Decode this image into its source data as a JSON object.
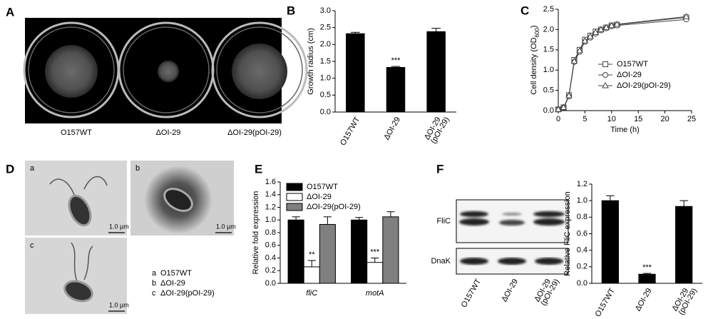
{
  "panel_labels": [
    "A",
    "B",
    "C",
    "D",
    "E",
    "F"
  ],
  "plates": {
    "labels": [
      "O157WT",
      "ΔOI-29",
      "ΔOI-29(pOI-29)"
    ]
  },
  "micrographs": {
    "sublabels": [
      "a",
      "b",
      "c"
    ],
    "scale_bars": [
      "1.0 µm",
      "1.0 µm",
      "1.0 µm"
    ],
    "legend": [
      [
        "a",
        "O157WT"
      ],
      [
        "b",
        "ΔOI-29"
      ],
      [
        "c",
        "ΔOI-29(pOI-29)"
      ]
    ]
  },
  "blot": {
    "bands": [
      "FliC",
      "DnaK"
    ],
    "lanes": [
      "O157WT",
      "ΔOI-29",
      [
        "ΔOI-29",
        "(pOI-29)"
      ]
    ]
  },
  "chart_data": [
    {
      "type": "bar",
      "ylabel": "Growth radius (cm)",
      "categories": [
        "O157WT",
        "ΔOI-29",
        [
          "ΔOI-29",
          "(pOI-29)"
        ]
      ],
      "values": [
        2.32,
        1.32,
        2.38
      ],
      "errors": [
        0.04,
        0.03,
        0.1
      ],
      "significance": [
        null,
        "***",
        null
      ],
      "color": "#000000",
      "ylim": [
        0,
        3
      ],
      "yticks": [
        {
          "value": 0,
          "label": "0.0"
        },
        0.5,
        {
          "value": 1,
          "label": "1.0"
        },
        1.5,
        {
          "value": 2,
          "label": "2.0"
        },
        2.5,
        {
          "value": 3,
          "label": "3.0"
        }
      ]
    },
    {
      "type": "line",
      "ylabel": [
        "Cell density (OD",
        "600",
        ")"
      ],
      "xlabel": "Time (h)",
      "x": [
        0,
        1,
        2,
        3,
        4,
        5,
        6,
        7,
        8,
        9,
        10,
        11,
        24
      ],
      "series": [
        {
          "name": "O157WT",
          "marker": "square",
          "color": "#444444",
          "values": [
            0.03,
            0.08,
            0.38,
            1.25,
            1.5,
            1.75,
            1.85,
            1.95,
            2.0,
            2.05,
            2.1,
            2.12,
            2.3
          ]
        },
        {
          "name": "ΔOI-29",
          "marker": "circle",
          "color": "#444444",
          "values": [
            0.03,
            0.07,
            0.35,
            1.2,
            1.45,
            1.7,
            1.8,
            1.9,
            1.98,
            2.03,
            2.08,
            2.1,
            2.25
          ]
        },
        {
          "name": "ΔOI-29(pOI-29)",
          "marker": "triangle",
          "color": "#444444",
          "values": [
            0.03,
            0.08,
            0.37,
            1.22,
            1.48,
            1.72,
            1.83,
            1.93,
            2.0,
            2.05,
            2.1,
            2.13,
            2.32
          ]
        }
      ],
      "xlim": [
        0,
        25
      ],
      "xticks": [
        0,
        5,
        10,
        15,
        20,
        25
      ],
      "ylim": [
        0,
        2.5
      ],
      "yticks": [
        {
          "value": 0,
          "label": "0.0"
        },
        0.5,
        {
          "value": 1,
          "label": "1.0"
        },
        1.5,
        {
          "value": 2,
          "label": "2.0"
        },
        2.5
      ]
    },
    {
      "type": "bar",
      "ylabel": "Relative fold expression",
      "categories": [
        "fliC",
        "motA"
      ],
      "series": [
        {
          "name": "O157WT",
          "color": "#000000",
          "values": [
            1.0,
            1.0
          ],
          "errors": [
            0.05,
            0.04
          ]
        },
        {
          "name": "ΔOI-29",
          "color": "#ffffff",
          "values": [
            0.26,
            0.33
          ],
          "errors": [
            0.1,
            0.07
          ],
          "significance": [
            "**",
            "***"
          ]
        },
        {
          "name": "ΔOI-29(pOI-29)",
          "color": "#808080",
          "values": [
            0.93,
            1.05
          ],
          "errors": [
            0.12,
            0.08
          ]
        }
      ],
      "ylim": [
        0,
        1.6
      ],
      "yticks": [
        {
          "value": 0,
          "label": "0.0"
        },
        0.2,
        0.4,
        0.6,
        0.8,
        {
          "value": 1,
          "label": "1.0"
        },
        1.2,
        1.4,
        1.6
      ]
    },
    {
      "type": "bar",
      "ylabel": "Relative FliC expression",
      "categories": [
        "O157WT",
        "ΔOI-29",
        [
          "ΔOI-29",
          "(pOI-29)"
        ]
      ],
      "values": [
        1.0,
        0.11,
        0.93
      ],
      "errors": [
        0.06,
        0.01,
        0.07
      ],
      "significance": [
        null,
        "***",
        null
      ],
      "color": "#000000",
      "ylim": [
        0,
        1.2
      ],
      "yticks": [
        {
          "value": 0,
          "label": "0.0"
        },
        0.2,
        0.4,
        0.6,
        0.8,
        {
          "value": 1,
          "label": "1.0"
        },
        1.2
      ]
    }
  ]
}
